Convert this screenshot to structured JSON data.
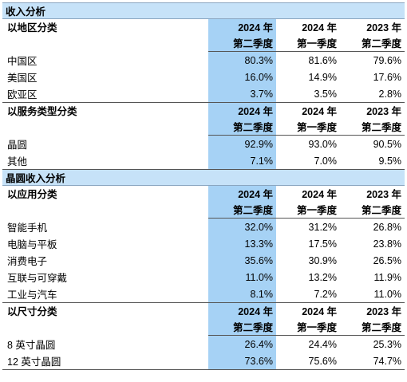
{
  "sections": [
    {
      "title": "收入分析",
      "groups": [
        {
          "name": "以地区分类",
          "rows": [
            {
              "label": "中国区",
              "values": [
                "80.3%",
                "81.6%",
                "79.6%"
              ]
            },
            {
              "label": "美国区",
              "values": [
                "16.0%",
                "14.9%",
                "17.6%"
              ]
            },
            {
              "label": "欧亚区",
              "values": [
                "3.7%",
                "3.5%",
                "2.8%"
              ]
            }
          ]
        },
        {
          "name": "以服务类型分类",
          "rows": [
            {
              "label": "晶圆",
              "values": [
                "92.9%",
                "93.0%",
                "90.5%"
              ]
            },
            {
              "label": "其他",
              "values": [
                "7.1%",
                "7.0%",
                "9.5%"
              ]
            }
          ]
        }
      ]
    },
    {
      "title": "晶圆收入分析",
      "groups": [
        {
          "name": "以应用分类",
          "rows": [
            {
              "label": "智能手机",
              "values": [
                "32.0%",
                "31.2%",
                "26.8%"
              ]
            },
            {
              "label": "电脑与平板",
              "values": [
                "13.3%",
                "17.5%",
                "23.8%"
              ]
            },
            {
              "label": "消费电子",
              "values": [
                "35.6%",
                "30.9%",
                "26.5%"
              ]
            },
            {
              "label": "互联与可穿戴",
              "values": [
                "11.0%",
                "13.2%",
                "11.9%"
              ]
            },
            {
              "label": "工业与汽车",
              "values": [
                "8.1%",
                "7.2%",
                "11.0%"
              ]
            }
          ]
        },
        {
          "name": "以尺寸分类",
          "rows": [
            {
              "label": "8 英寸晶圆",
              "values": [
                "26.4%",
                "24.4%",
                "25.3%"
              ]
            },
            {
              "label": "12 英寸晶圆",
              "values": [
                "73.6%",
                "75.6%",
                "74.7%"
              ]
            }
          ]
        }
      ]
    }
  ],
  "columns": [
    {
      "year": "2024 年",
      "quarter": "第二季度",
      "highlighted": true
    },
    {
      "year": "2024 年",
      "quarter": "第一季度",
      "highlighted": false
    },
    {
      "year": "2023 年",
      "quarter": "第二季度",
      "highlighted": false
    }
  ],
  "colors": {
    "section_bg": "#c6e2f8",
    "highlight_col": "#a6d2f5"
  }
}
